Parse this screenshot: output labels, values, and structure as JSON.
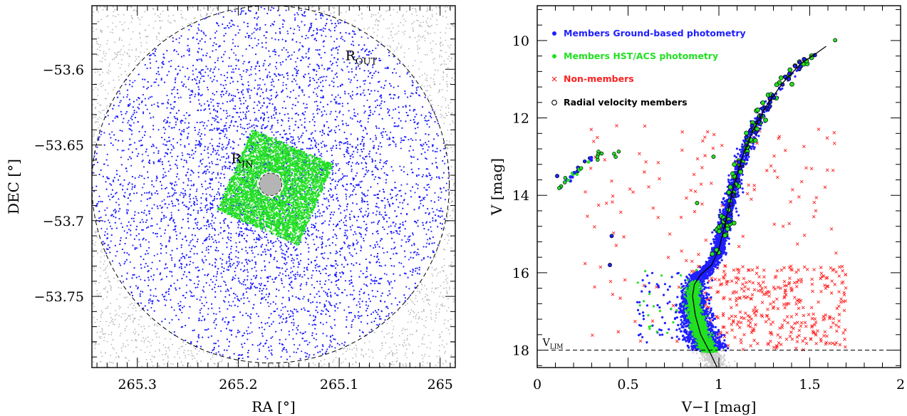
{
  "chart_data": [
    {
      "type": "scatter",
      "title": "",
      "xlabel": "RA [°]",
      "ylabel": "DEC [°]",
      "xlim": [
        265.345,
        264.985
      ],
      "ylim": [
        -53.797,
        -53.558
      ],
      "x_ticks": [
        "265.3",
        "265.2",
        "265.1",
        "265"
      ],
      "y_ticks": [
        "−53.6",
        "−53.65",
        "−53.7",
        "−53.75"
      ],
      "center": {
        "ra": 265.168,
        "dec": -53.676
      },
      "annotations": [
        {
          "text": "R",
          "sub": "OUT",
          "ra": 265.094,
          "dec": -53.594
        },
        {
          "text": "R",
          "sub": "IN",
          "ra": 265.207,
          "dec": -53.662
        }
      ],
      "r_out_deg": 0.118,
      "r_in_deg": 0.0075,
      "series": [
        {
          "role": "field",
          "color": "#b4b4b4"
        },
        {
          "role": "ground-members",
          "color": "#1f1fff"
        },
        {
          "role": "hst-members",
          "color": "#22e022"
        }
      ]
    },
    {
      "type": "scatter",
      "title": "",
      "xlabel": "V−I [mag]",
      "ylabel": "V [mag]",
      "xlim": [
        0,
        2
      ],
      "ylim": [
        18.45,
        9.1
      ],
      "y_inverted": true,
      "x_ticks": [
        "0",
        "0.5",
        "1",
        "1.5",
        "2"
      ],
      "y_ticks": [
        "10",
        "12",
        "14",
        "16",
        "18"
      ],
      "v_lim": {
        "label": "V",
        "sub": "LIM",
        "value": 18.0
      },
      "legend": {
        "position": "top-left",
        "entries": [
          {
            "label": "Members Ground-based photometry",
            "color": "#1f1fff",
            "marker": "dot"
          },
          {
            "label": "Members HST/ACS photometry",
            "color": "#22e022",
            "marker": "dot"
          },
          {
            "label": "Non-members",
            "color": "#ff2020",
            "marker": "cross"
          },
          {
            "label": "Radial velocity members",
            "color": "#000000",
            "marker": "circle"
          }
        ]
      },
      "isochrone": [
        [
          0.99,
          18.45
        ],
        [
          0.95,
          18.05
        ],
        [
          0.9,
          17.6
        ],
        [
          0.87,
          17.1
        ],
        [
          0.855,
          16.6
        ],
        [
          0.865,
          16.3
        ],
        [
          0.9,
          16.05
        ],
        [
          0.96,
          15.8
        ],
        [
          1.0,
          15.4
        ],
        [
          1.03,
          14.8
        ],
        [
          1.06,
          14.2
        ],
        [
          1.09,
          13.6
        ],
        [
          1.13,
          13.0
        ],
        [
          1.19,
          12.3
        ],
        [
          1.26,
          11.7
        ],
        [
          1.35,
          11.1
        ],
        [
          1.45,
          10.6
        ],
        [
          1.53,
          10.35
        ],
        [
          1.59,
          10.15
        ]
      ],
      "series": [
        {
          "name": "Members Ground-based photometry",
          "color": "#1f1fff"
        },
        {
          "name": "Members HST/ACS photometry",
          "color": "#22e022"
        },
        {
          "name": "Non-members",
          "color": "#ff2020"
        },
        {
          "name": "Radial velocity members",
          "color": "#000000"
        }
      ]
    }
  ]
}
